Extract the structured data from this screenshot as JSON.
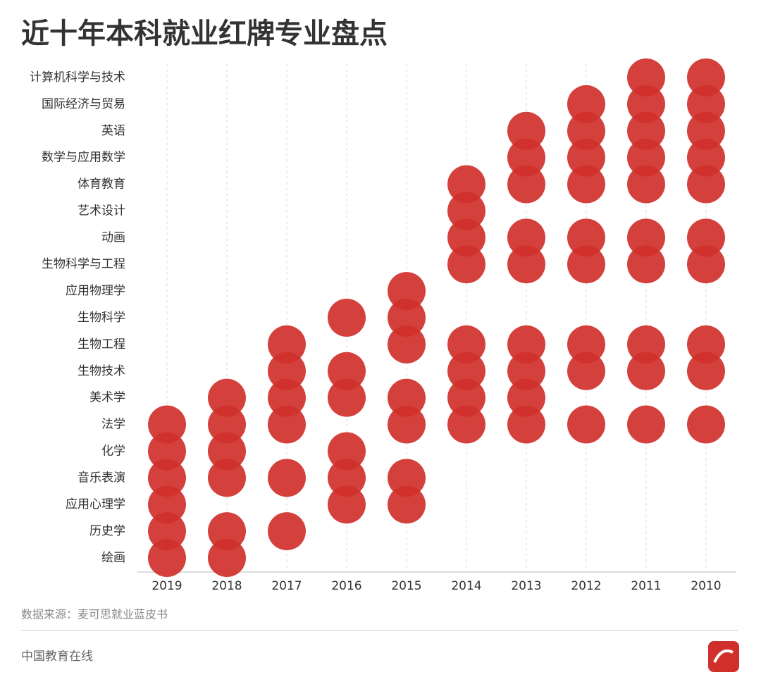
{
  "chart_data": {
    "type": "dot-matrix",
    "title": "近十年本科就业红牌专业盘点",
    "source": "数据来源：麦可思就业蓝皮书",
    "footer": "中国教育在线",
    "color": "#d0302b",
    "grid": true,
    "columns": [
      "2019",
      "2018",
      "2017",
      "2016",
      "2015",
      "2014",
      "2013",
      "2012",
      "2011",
      "2010"
    ],
    "rows": [
      "计算机科学与技术",
      "国际经济与贸易",
      "英语",
      "数学与应用数学",
      "体育教育",
      "艺术设计",
      "动画",
      "生物科学与工程",
      "应用物理学",
      "生物科学",
      "生物工程",
      "生物技术",
      "美术学",
      "法学",
      "化学",
      "音乐表演",
      "应用心理学",
      "历史学",
      "绘画"
    ],
    "values": [
      [
        0,
        0,
        0,
        0,
        0,
        0,
        0,
        0,
        1,
        1
      ],
      [
        0,
        0,
        0,
        0,
        0,
        0,
        0,
        1,
        1,
        1
      ],
      [
        0,
        0,
        0,
        0,
        0,
        0,
        1,
        1,
        1,
        1
      ],
      [
        0,
        0,
        0,
        0,
        0,
        0,
        1,
        1,
        1,
        1
      ],
      [
        0,
        0,
        0,
        0,
        0,
        1,
        1,
        1,
        1,
        1
      ],
      [
        0,
        0,
        0,
        0,
        0,
        1,
        0,
        0,
        0,
        0
      ],
      [
        0,
        0,
        0,
        0,
        0,
        1,
        1,
        1,
        1,
        1
      ],
      [
        0,
        0,
        0,
        0,
        0,
        1,
        1,
        1,
        1,
        1
      ],
      [
        0,
        0,
        0,
        0,
        1,
        0,
        0,
        0,
        0,
        0
      ],
      [
        0,
        0,
        0,
        1,
        1,
        0,
        0,
        0,
        0,
        0
      ],
      [
        0,
        0,
        1,
        0,
        1,
        1,
        1,
        1,
        1,
        1
      ],
      [
        0,
        0,
        1,
        1,
        0,
        1,
        1,
        1,
        1,
        1
      ],
      [
        0,
        1,
        1,
        1,
        1,
        1,
        1,
        0,
        0,
        0
      ],
      [
        1,
        1,
        1,
        0,
        1,
        1,
        1,
        1,
        1,
        1
      ],
      [
        1,
        1,
        0,
        1,
        0,
        0,
        0,
        0,
        0,
        0
      ],
      [
        1,
        1,
        1,
        1,
        1,
        0,
        0,
        0,
        0,
        0
      ],
      [
        1,
        0,
        0,
        1,
        1,
        0,
        0,
        0,
        0,
        0
      ],
      [
        1,
        1,
        1,
        0,
        0,
        0,
        0,
        0,
        0,
        0
      ],
      [
        1,
        1,
        0,
        0,
        0,
        0,
        0,
        0,
        0,
        0
      ]
    ]
  }
}
